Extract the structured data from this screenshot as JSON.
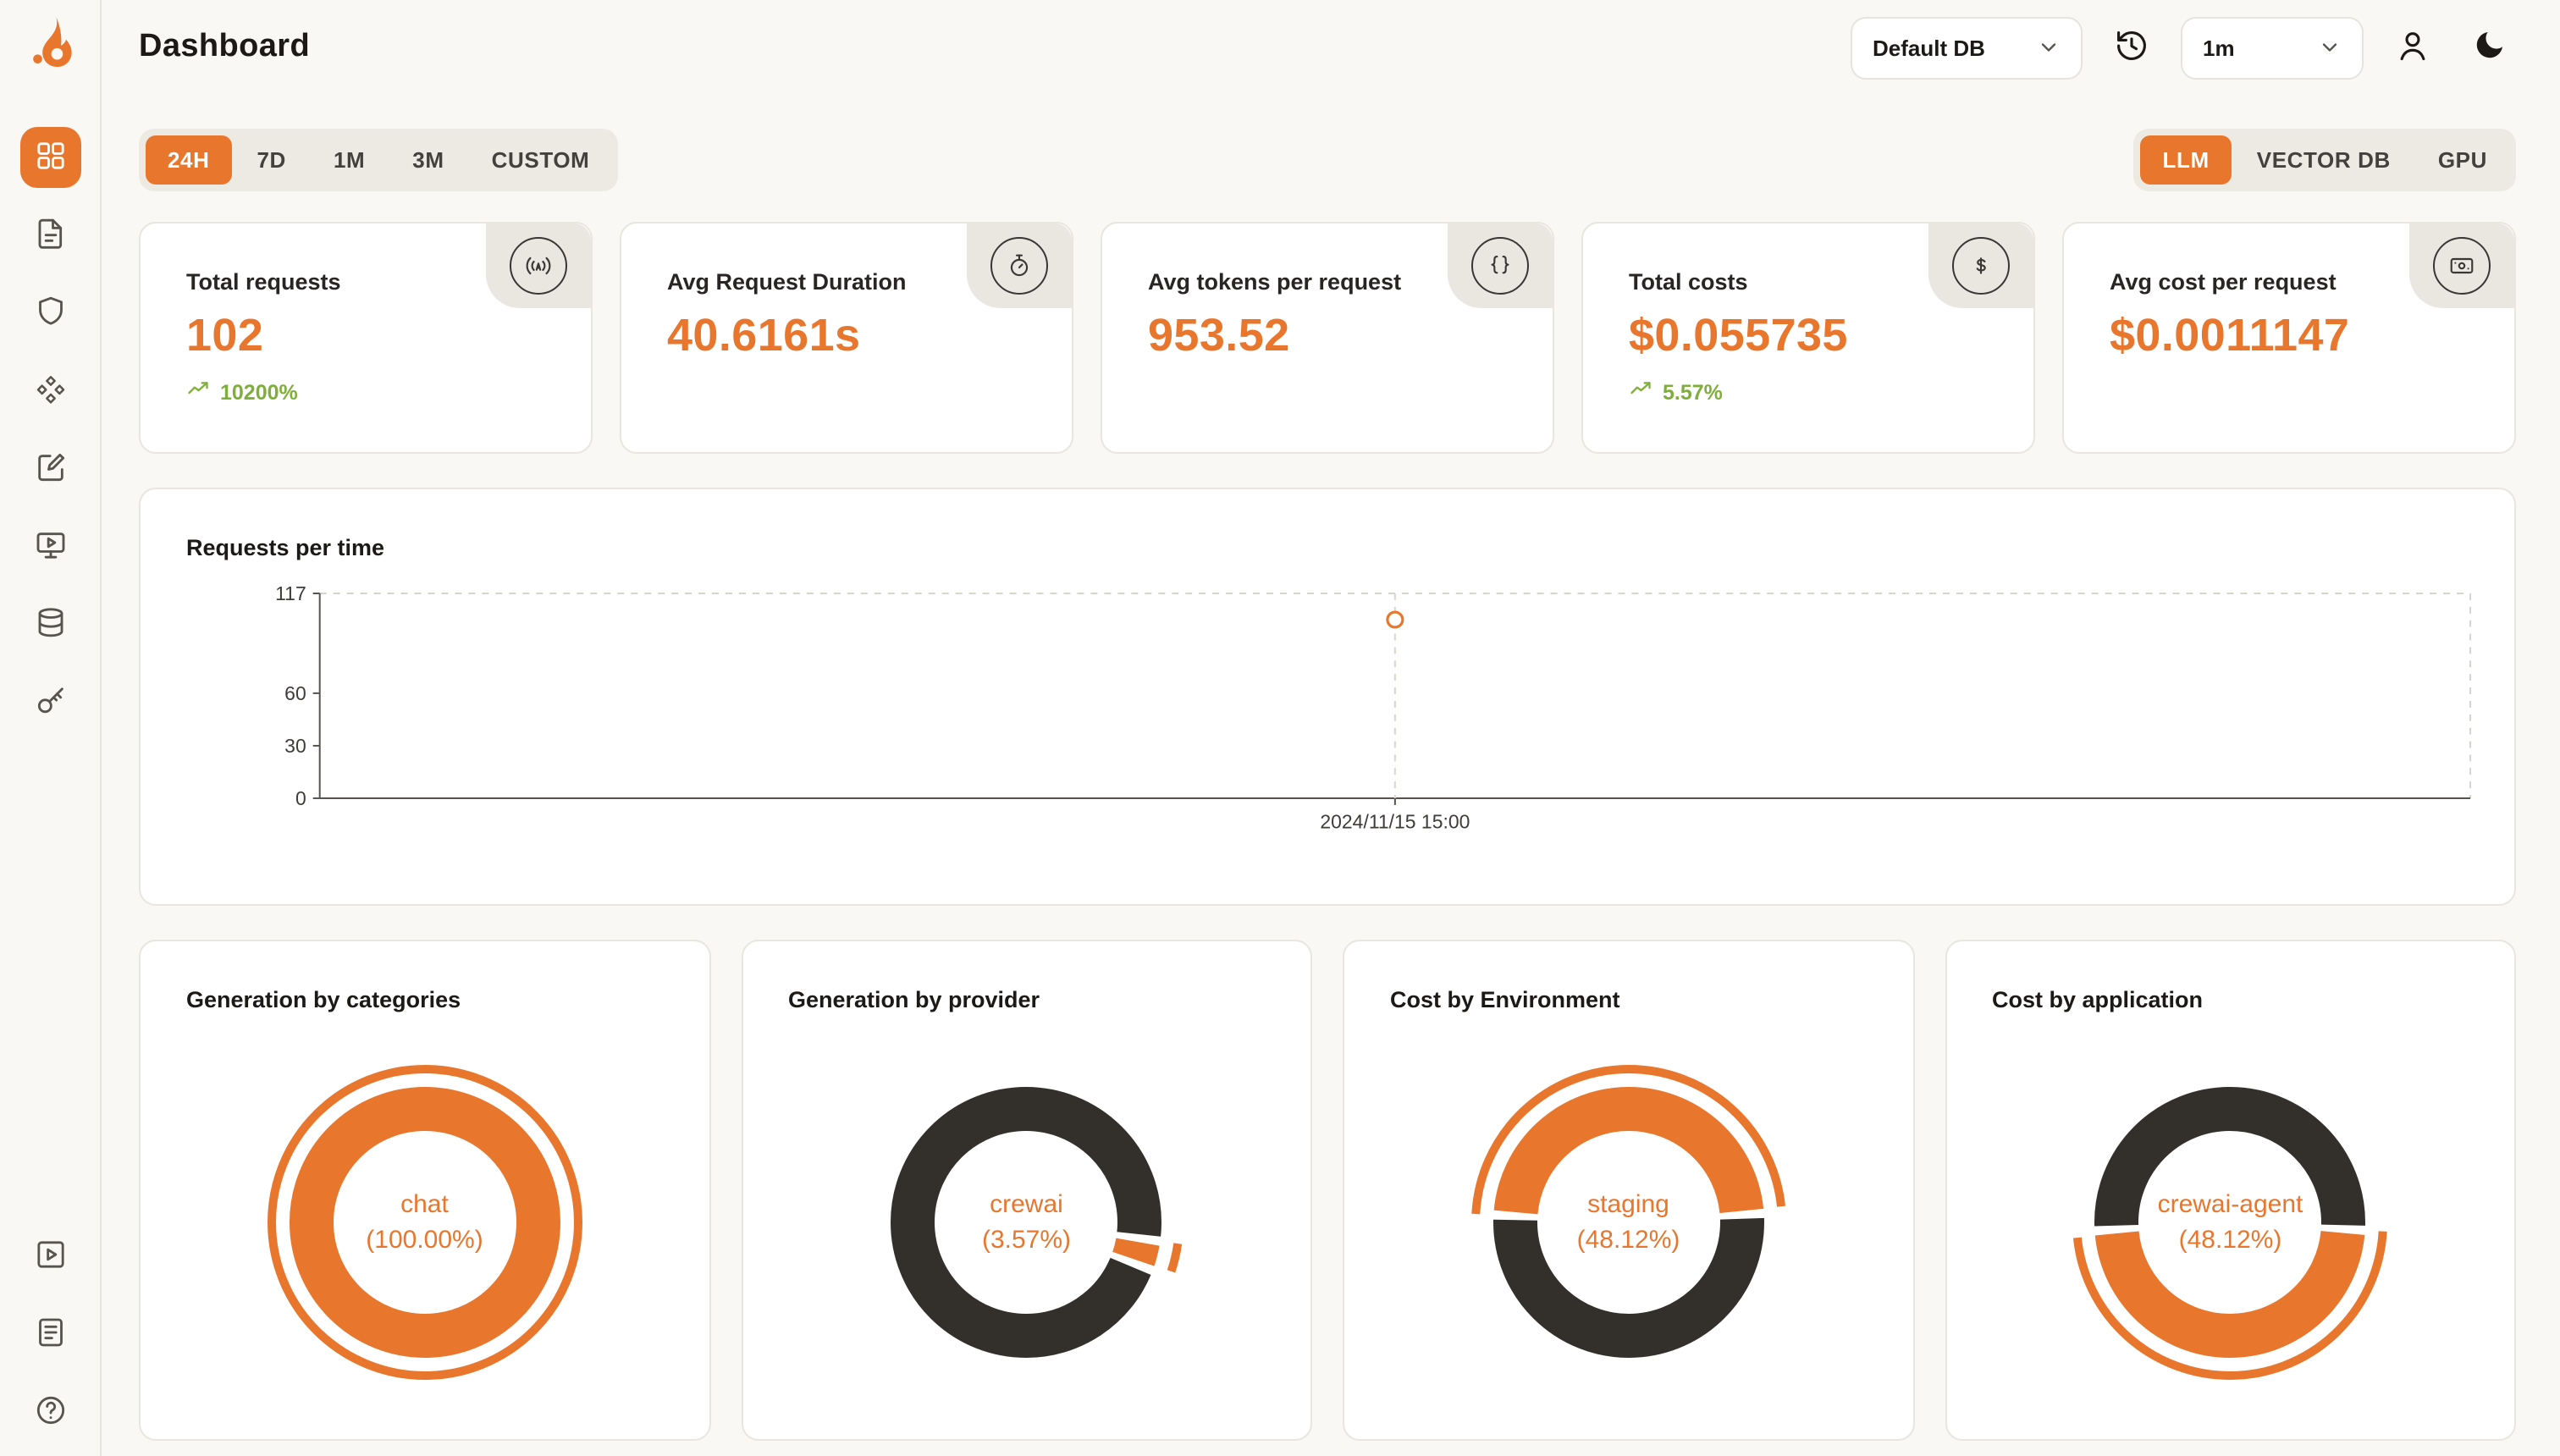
{
  "colors": {
    "accent": "#e8762d",
    "dark_slice": "#33302c",
    "positive": "#7fae3b"
  },
  "page": {
    "title": "Dashboard"
  },
  "sidebar": {
    "top_items": [
      {
        "icon": "dashboard-grid-icon",
        "active": true
      },
      {
        "icon": "requests-file-icon",
        "active": false
      },
      {
        "icon": "exceptions-shield-icon",
        "active": false
      },
      {
        "icon": "blocks-icon",
        "active": false
      },
      {
        "icon": "prompt-note-icon",
        "active": false
      },
      {
        "icon": "playground-monitor-icon",
        "active": false
      },
      {
        "icon": "database-icon",
        "active": false
      },
      {
        "icon": "api-key-icon",
        "active": false
      }
    ],
    "bottom_items": [
      {
        "icon": "video-play-icon",
        "active": false
      },
      {
        "icon": "docs-icon",
        "active": false
      },
      {
        "icon": "help-icon",
        "active": false
      }
    ]
  },
  "header": {
    "database_selector": "Default DB",
    "interval_selector": "1m"
  },
  "time_range_tabs": {
    "items": [
      "24H",
      "7D",
      "1M",
      "3M",
      "CUSTOM"
    ],
    "active": "24H"
  },
  "source_tabs": {
    "items": [
      "LLM",
      "VECTOR DB",
      "GPU"
    ],
    "active": "LLM"
  },
  "stat_cards": [
    {
      "label": "Total requests",
      "value": "102",
      "change": "10200%",
      "icon": "antenna-icon"
    },
    {
      "label": "Avg Request Duration",
      "value": "40.6161s",
      "change": null,
      "icon": "stopwatch-icon"
    },
    {
      "label": "Avg tokens per request",
      "value": "953.52",
      "change": null,
      "icon": "braces-icon"
    },
    {
      "label": "Total costs",
      "value": "$0.055735",
      "change": "5.57%",
      "icon": "dollar-circle-icon"
    },
    {
      "label": "Avg cost per request",
      "value": "$0.0011147",
      "change": null,
      "icon": "banknote-icon"
    }
  ],
  "chart_data": [
    {
      "type": "line",
      "title": "Requests per time",
      "x": [
        "2024/11/15 15:00"
      ],
      "series": [
        {
          "name": "requests",
          "values": [
            102
          ]
        }
      ],
      "ylim": [
        0,
        117
      ],
      "yticks": [
        0,
        30,
        60,
        117
      ],
      "grid": "dashed-top-right-frame",
      "legend": "none",
      "point_style": "hollow-orange-circle"
    },
    {
      "type": "pie",
      "title": "Generation by categories",
      "center_label": "chat",
      "center_value": "(100.00%)",
      "slices": [
        {
          "name": "chat",
          "value": 100,
          "color": "#e8762d"
        }
      ],
      "accent_center": null
    },
    {
      "type": "pie",
      "title": "Generation by provider",
      "center_label": "crewai",
      "center_value": "(3.57%)",
      "slices": [
        {
          "name": "crewai",
          "value": 3.57,
          "color": "#e8762d"
        },
        {
          "name": "other",
          "value": 96.43,
          "color": "#33302c"
        }
      ],
      "accent_center": 4
    },
    {
      "type": "pie",
      "title": "Cost by Environment",
      "center_label": "staging",
      "center_value": "(48.12%)",
      "slices": [
        {
          "name": "staging",
          "value": 48.12,
          "color": "#e8762d"
        },
        {
          "name": "other",
          "value": 51.88,
          "color": "#33302c"
        }
      ],
      "accent_center": 75
    },
    {
      "type": "pie",
      "title": "Cost by application",
      "center_label": "crewai-agent",
      "center_value": "(48.12%)",
      "slices": [
        {
          "name": "crewai-agent",
          "value": 48.12,
          "color": "#e8762d"
        },
        {
          "name": "other",
          "value": 51.88,
          "color": "#33302c"
        }
      ],
      "accent_center": 25
    }
  ]
}
